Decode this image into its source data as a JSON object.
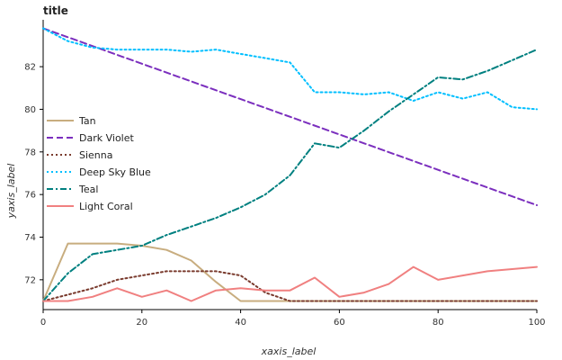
{
  "chart_data": {
    "type": "line",
    "title": "title",
    "xlabel": "xaxis_label",
    "ylabel": "yaxis_label",
    "xlim": [
      0,
      100
    ],
    "ylim": [
      70.6,
      84.2
    ],
    "xticks": [
      0,
      20,
      40,
      60,
      80,
      100
    ],
    "yticks": [
      72,
      74,
      76,
      78,
      80,
      82
    ],
    "grid": false,
    "legend_position": "left",
    "series": [
      {
        "name": "Tan",
        "color": "#C8AD7F",
        "dash": "solid",
        "x": [
          0,
          5,
          10,
          15,
          20,
          25,
          30,
          35,
          40,
          45,
          50,
          55,
          60,
          65,
          70,
          75,
          80,
          85,
          90,
          95,
          100
        ],
        "y": [
          71.0,
          73.7,
          73.7,
          73.7,
          73.6,
          73.4,
          72.9,
          71.9,
          71.0,
          71.0,
          71.0,
          71.0,
          71.0,
          71.0,
          71.0,
          71.0,
          71.0,
          71.0,
          71.0,
          71.0,
          71.0
        ]
      },
      {
        "name": "Dark Violet",
        "color": "#7B2FBE",
        "dash": "dashed",
        "x": [
          0,
          100
        ],
        "y": [
          83.8,
          75.5
        ]
      },
      {
        "name": "Sienna",
        "color": "#7A3B2E",
        "dash": "dotted",
        "x": [
          0,
          5,
          10,
          15,
          20,
          25,
          30,
          35,
          40,
          45,
          50,
          55,
          60,
          65,
          70,
          75,
          80,
          85,
          90,
          95,
          100
        ],
        "y": [
          71.0,
          71.3,
          71.6,
          72.0,
          72.2,
          72.4,
          72.4,
          72.4,
          72.2,
          71.4,
          71.0,
          71.0,
          71.0,
          71.0,
          71.0,
          71.0,
          71.0,
          71.0,
          71.0,
          71.0,
          71.0
        ]
      },
      {
        "name": "Deep Sky Blue",
        "color": "#00BFFF",
        "dash": "dotted",
        "x": [
          0,
          5,
          10,
          15,
          20,
          25,
          30,
          35,
          40,
          45,
          50,
          55,
          60,
          65,
          70,
          75,
          80,
          85,
          90,
          95,
          100
        ],
        "y": [
          83.8,
          83.2,
          82.9,
          82.8,
          82.8,
          82.8,
          82.7,
          82.8,
          82.6,
          82.4,
          82.2,
          80.8,
          80.8,
          80.7,
          80.8,
          80.4,
          80.8,
          80.5,
          80.8,
          80.1,
          80.0
        ]
      },
      {
        "name": "Teal",
        "color": "#008080",
        "dash": "dash-dot",
        "x": [
          0,
          5,
          10,
          15,
          20,
          25,
          30,
          35,
          40,
          45,
          50,
          55,
          60,
          65,
          70,
          75,
          80,
          85,
          90,
          95,
          100
        ],
        "y": [
          71.0,
          72.3,
          73.2,
          73.4,
          73.6,
          74.1,
          74.5,
          74.9,
          75.4,
          76.0,
          76.9,
          78.4,
          78.2,
          79.0,
          79.9,
          80.7,
          81.5,
          81.4,
          81.8,
          82.3,
          82.8
        ]
      },
      {
        "name": "Light Coral",
        "color": "#F08080",
        "dash": "solid",
        "x": [
          0,
          5,
          10,
          15,
          20,
          25,
          30,
          35,
          40,
          45,
          50,
          55,
          60,
          65,
          70,
          75,
          80,
          85,
          90,
          95,
          100
        ],
        "y": [
          71.0,
          71.0,
          71.2,
          71.6,
          71.2,
          71.5,
          71.0,
          71.5,
          71.6,
          71.5,
          71.5,
          72.1,
          71.2,
          71.4,
          71.8,
          72.6,
          72.0,
          72.2,
          72.4,
          72.5,
          72.6
        ]
      }
    ]
  }
}
